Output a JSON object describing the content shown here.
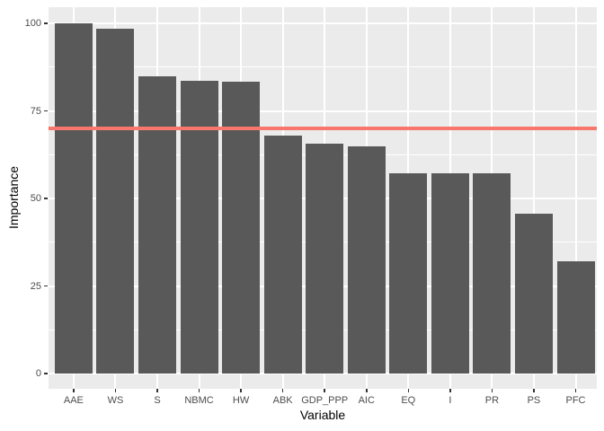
{
  "chart_data": {
    "type": "bar",
    "title": "",
    "xlabel": "Variable",
    "ylabel": "Importance",
    "categories": [
      "AAE",
      "WS",
      "S",
      "NBMC",
      "HW",
      "ABK",
      "GDP_PPP",
      "AIC",
      "EQ",
      "I",
      "PR",
      "PS",
      "PFC"
    ],
    "values": [
      100,
      98.5,
      84.8,
      83.5,
      83.4,
      68,
      65.6,
      65,
      57.3,
      57.3,
      57.3,
      45.6,
      32
    ],
    "reference_line": {
      "value": 70,
      "color": "#F8766D"
    },
    "y_ticks": [
      0,
      25,
      50,
      75,
      100
    ],
    "y_minor_ticks": [
      12.5,
      37.5,
      62.5,
      87.5
    ],
    "ylim": [
      0,
      100
    ],
    "legend": "none",
    "grid": true,
    "bar_color": "#595959",
    "panel_background": "#EBEBEB",
    "gridline_color": "#FFFFFF",
    "axis_text_color": "#4D4D4D",
    "axis_title_color": "#000000",
    "tick_mark_color": "#333333"
  }
}
